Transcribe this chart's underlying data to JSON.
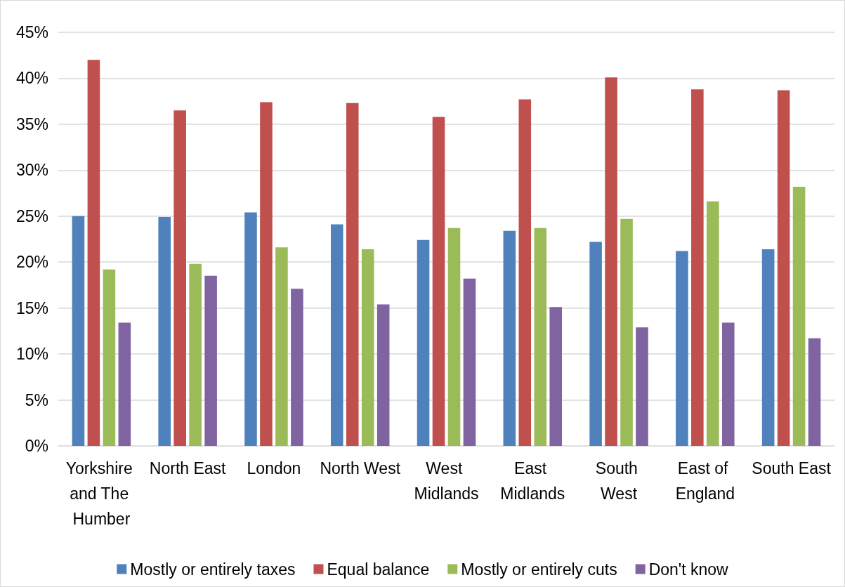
{
  "chart_data": {
    "type": "bar",
    "categories": [
      "Yorkshire and The Humber",
      "North East",
      "London",
      "North West",
      "West Midlands",
      "East Midlands",
      "South West",
      "East of England",
      "South East"
    ],
    "series": [
      {
        "name": "Mostly or entirely taxes",
        "color": "#4f81bd",
        "values": [
          25.0,
          24.9,
          25.4,
          24.1,
          22.4,
          23.4,
          22.2,
          21.2,
          21.4
        ]
      },
      {
        "name": "Equal balance",
        "color": "#c0504d",
        "values": [
          42.0,
          36.5,
          37.4,
          37.3,
          35.8,
          37.7,
          40.1,
          38.8,
          38.7
        ]
      },
      {
        "name": "Mostly or entirely cuts",
        "color": "#9bbb59",
        "values": [
          19.2,
          19.8,
          21.6,
          21.4,
          23.7,
          23.7,
          24.7,
          26.6,
          28.2
        ]
      },
      {
        "name": "Don't know",
        "color": "#8064a2",
        "values": [
          13.4,
          18.5,
          17.1,
          15.4,
          18.2,
          15.1,
          12.9,
          13.4,
          11.7
        ]
      }
    ],
    "ylim": [
      0,
      45
    ],
    "yticks": [
      {
        "value": 0,
        "label": "0%"
      },
      {
        "value": 5,
        "label": "5%"
      },
      {
        "value": 10,
        "label": "10%"
      },
      {
        "value": 15,
        "label": "15%"
      },
      {
        "value": 20,
        "label": "20%"
      },
      {
        "value": 25,
        "label": "25%"
      },
      {
        "value": 30,
        "label": "30%"
      },
      {
        "value": 35,
        "label": "35%"
      },
      {
        "value": 40,
        "label": "40%"
      },
      {
        "value": 45,
        "label": "45%"
      }
    ],
    "grid": "y",
    "legend": "bottom"
  }
}
